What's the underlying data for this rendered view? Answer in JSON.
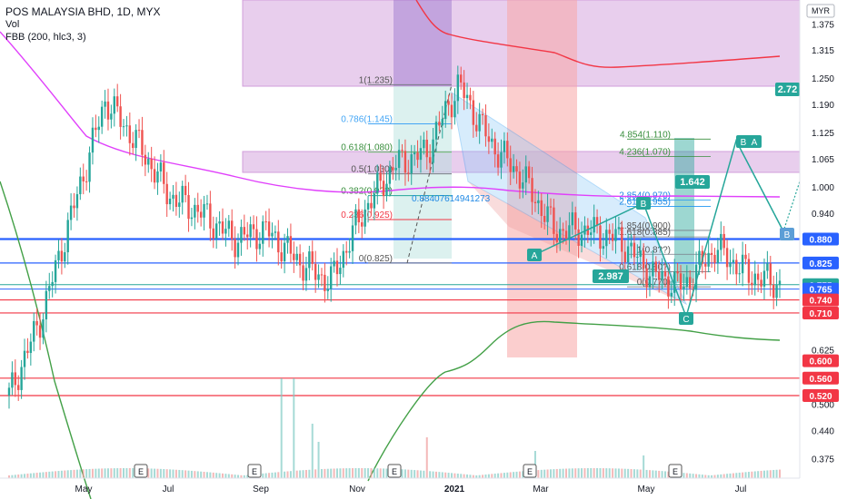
{
  "header": {
    "title": "POS MALAYSIA BHD, 1D, MYX",
    "vol_label": "Vol",
    "indicator_label": "FBB (200, hlc3, 3)",
    "currency": "MYR"
  },
  "chart_data": {
    "type": "candlestick",
    "title": "POS MALAYSIA BHD, 1D, MYX",
    "x_tick_labels": [
      "May",
      "Jul",
      "Sep",
      "Nov",
      "2021",
      "Mar",
      "May",
      "Jul"
    ],
    "y_tick_labels": [
      "1.375",
      "1.315",
      "1.250",
      "1.190",
      "1.125",
      "1.065",
      "1.000",
      "0.940",
      "0.880",
      "0.825",
      "0.775",
      "0.710",
      "0.625",
      "0.560",
      "0.500",
      "0.440",
      "0.375"
    ],
    "ylim": [
      0.33,
      1.43
    ],
    "price_badges": [
      {
        "label": "0.880",
        "value": 0.88,
        "color": "#2962ff"
      },
      {
        "label": "0.825",
        "value": 0.825,
        "color": "#2962ff"
      },
      {
        "label": "0.775",
        "value": 0.775,
        "color": "#26a69a"
      },
      {
        "label": "0.765",
        "value": 0.765,
        "color": "#2962ff"
      },
      {
        "label": "0.740",
        "value": 0.74,
        "color": "#f23645"
      },
      {
        "label": "0.710",
        "value": 0.71,
        "color": "#f23645"
      },
      {
        "label": "0.600",
        "value": 0.6,
        "color": "#f23645"
      },
      {
        "label": "0.560",
        "value": 0.56,
        "color": "#f23645"
      },
      {
        "label": "0.520",
        "value": 0.52,
        "color": "#f23645"
      }
    ],
    "close_price_series": [
      {
        "x": "Apr-20",
        "close": 0.52
      },
      {
        "x": "May-20 early",
        "close": 0.7
      },
      {
        "x": "May-20",
        "close": 0.95
      },
      {
        "x": "May-20 peak",
        "close": 1.2
      },
      {
        "x": "Jun-20",
        "close": 1.1
      },
      {
        "x": "Jul-20",
        "close": 0.98
      },
      {
        "x": "Aug-20",
        "close": 0.94
      },
      {
        "x": "Aug-20 late",
        "close": 0.88
      },
      {
        "x": "Sep-20",
        "close": 0.9
      },
      {
        "x": "Oct-20",
        "close": 0.83
      },
      {
        "x": "Oct-20 low",
        "close": 0.78
      },
      {
        "x": "Nov-20",
        "close": 0.94
      },
      {
        "x": "Nov-20 late",
        "close": 1.05
      },
      {
        "x": "Dec-20",
        "close": 1.08
      },
      {
        "x": "Jan-21 peak",
        "close": 1.235
      },
      {
        "x": "Jan-21",
        "close": 1.1
      },
      {
        "x": "Feb-21",
        "close": 1.02
      },
      {
        "x": "Feb-21 late",
        "close": 0.9
      },
      {
        "x": "Mar-21",
        "close": 0.9
      },
      {
        "x": "Apr-21",
        "close": 0.88
      },
      {
        "x": "May-21",
        "close": 0.8
      },
      {
        "x": "May-21 low",
        "close": 0.77
      },
      {
        "x": "Jun-21",
        "close": 0.86
      },
      {
        "x": "Jul-21",
        "close": 0.8
      },
      {
        "x": "Aug-21",
        "close": 0.775
      }
    ],
    "fib_retracement": [
      {
        "label": "1(1.235)",
        "value": 1.235
      },
      {
        "label": "0.786(1.145)",
        "value": 1.145
      },
      {
        "label": "0.618(1.080)",
        "value": 1.08
      },
      {
        "label": "0.5(1.030)",
        "value": 1.03
      },
      {
        "label": "0.382(0.9??)",
        "value": 0.98
      },
      {
        "label": "0.236(0.925)",
        "value": 0.925
      },
      {
        "label": "0(0.825)",
        "value": 0.825
      }
    ],
    "fib_extension": [
      {
        "label": "4.854(1.110)",
        "value": 1.11
      },
      {
        "label": "4.236(1.070)",
        "value": 1.07
      },
      {
        "label": "2.854(0.970)",
        "value": 0.97
      },
      {
        "label": "2.618(0.955)",
        "value": 0.955
      },
      {
        "label": "1.854(0.900)",
        "value": 0.9
      },
      {
        "label": "1.618(0.885)",
        "value": 0.885
      },
      {
        "label": "1(0.8??)",
        "value": 0.845
      },
      {
        "label": "0.618(0.80?)",
        "value": 0.805
      },
      {
        "label": "0(0.770)",
        "value": 0.77
      }
    ],
    "annotations": {
      "pattern_points": [
        "A",
        "B",
        "C"
      ],
      "ratio_labels": [
        "2.987",
        "1.642",
        "2.72"
      ],
      "line_value": "0.88407614941273",
      "earnings_marker": "E",
      "projection_points": [
        "B",
        "A",
        "B"
      ]
    }
  }
}
